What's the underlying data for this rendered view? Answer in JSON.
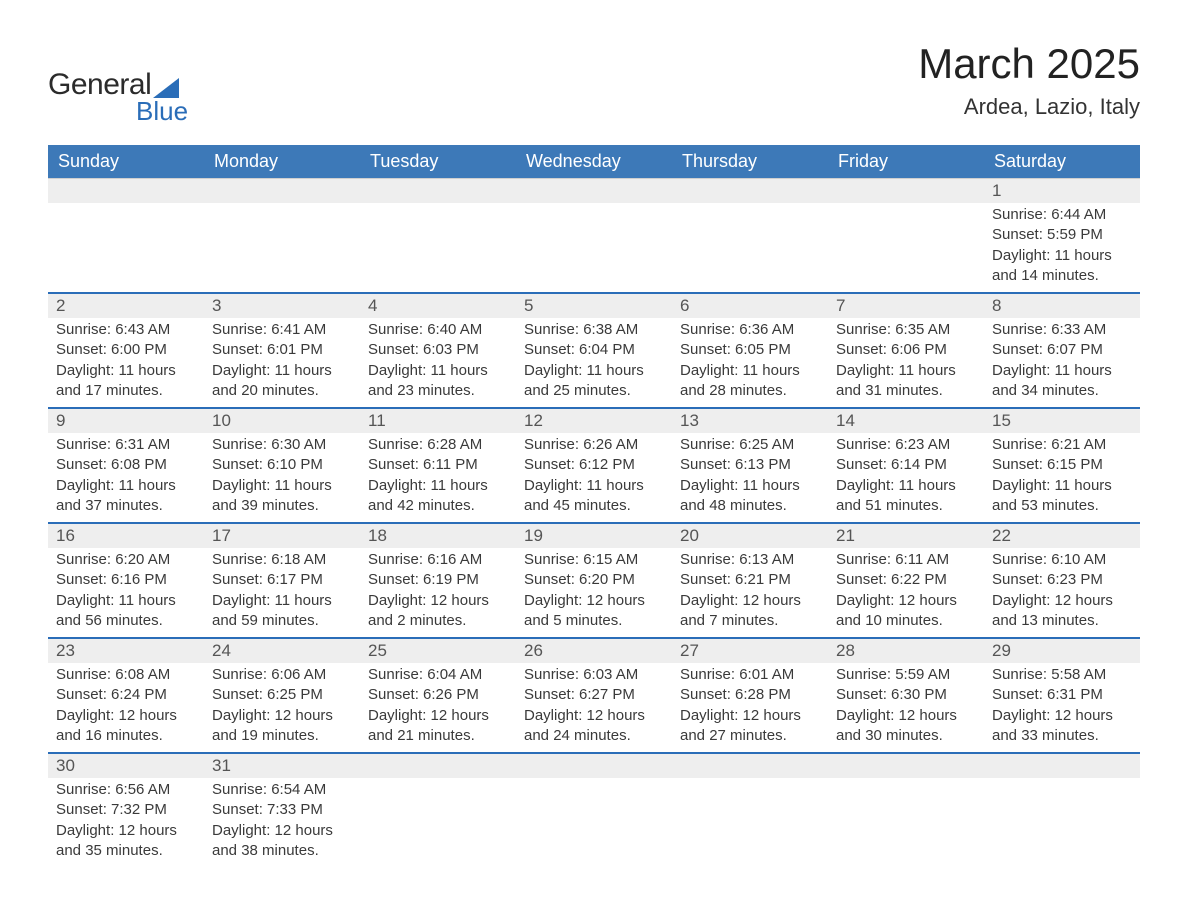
{
  "logo": {
    "text1": "General",
    "text2": "Blue"
  },
  "title": "March 2025",
  "location": "Ardea, Lazio, Italy",
  "header_bg": "#3d79b8",
  "accent": "#2a6db8",
  "daynum_bg": "#eeeeee",
  "columns": [
    "Sunday",
    "Monday",
    "Tuesday",
    "Wednesday",
    "Thursday",
    "Friday",
    "Saturday"
  ],
  "weeks": [
    [
      null,
      null,
      null,
      null,
      null,
      null,
      {
        "d": "1",
        "sr": "6:44 AM",
        "ss": "5:59 PM",
        "dl": "11 hours and 14 minutes."
      }
    ],
    [
      {
        "d": "2",
        "sr": "6:43 AM",
        "ss": "6:00 PM",
        "dl": "11 hours and 17 minutes."
      },
      {
        "d": "3",
        "sr": "6:41 AM",
        "ss": "6:01 PM",
        "dl": "11 hours and 20 minutes."
      },
      {
        "d": "4",
        "sr": "6:40 AM",
        "ss": "6:03 PM",
        "dl": "11 hours and 23 minutes."
      },
      {
        "d": "5",
        "sr": "6:38 AM",
        "ss": "6:04 PM",
        "dl": "11 hours and 25 minutes."
      },
      {
        "d": "6",
        "sr": "6:36 AM",
        "ss": "6:05 PM",
        "dl": "11 hours and 28 minutes."
      },
      {
        "d": "7",
        "sr": "6:35 AM",
        "ss": "6:06 PM",
        "dl": "11 hours and 31 minutes."
      },
      {
        "d": "8",
        "sr": "6:33 AM",
        "ss": "6:07 PM",
        "dl": "11 hours and 34 minutes."
      }
    ],
    [
      {
        "d": "9",
        "sr": "6:31 AM",
        "ss": "6:08 PM",
        "dl": "11 hours and 37 minutes."
      },
      {
        "d": "10",
        "sr": "6:30 AM",
        "ss": "6:10 PM",
        "dl": "11 hours and 39 minutes."
      },
      {
        "d": "11",
        "sr": "6:28 AM",
        "ss": "6:11 PM",
        "dl": "11 hours and 42 minutes."
      },
      {
        "d": "12",
        "sr": "6:26 AM",
        "ss": "6:12 PM",
        "dl": "11 hours and 45 minutes."
      },
      {
        "d": "13",
        "sr": "6:25 AM",
        "ss": "6:13 PM",
        "dl": "11 hours and 48 minutes."
      },
      {
        "d": "14",
        "sr": "6:23 AM",
        "ss": "6:14 PM",
        "dl": "11 hours and 51 minutes."
      },
      {
        "d": "15",
        "sr": "6:21 AM",
        "ss": "6:15 PM",
        "dl": "11 hours and 53 minutes."
      }
    ],
    [
      {
        "d": "16",
        "sr": "6:20 AM",
        "ss": "6:16 PM",
        "dl": "11 hours and 56 minutes."
      },
      {
        "d": "17",
        "sr": "6:18 AM",
        "ss": "6:17 PM",
        "dl": "11 hours and 59 minutes."
      },
      {
        "d": "18",
        "sr": "6:16 AM",
        "ss": "6:19 PM",
        "dl": "12 hours and 2 minutes."
      },
      {
        "d": "19",
        "sr": "6:15 AM",
        "ss": "6:20 PM",
        "dl": "12 hours and 5 minutes."
      },
      {
        "d": "20",
        "sr": "6:13 AM",
        "ss": "6:21 PM",
        "dl": "12 hours and 7 minutes."
      },
      {
        "d": "21",
        "sr": "6:11 AM",
        "ss": "6:22 PM",
        "dl": "12 hours and 10 minutes."
      },
      {
        "d": "22",
        "sr": "6:10 AM",
        "ss": "6:23 PM",
        "dl": "12 hours and 13 minutes."
      }
    ],
    [
      {
        "d": "23",
        "sr": "6:08 AM",
        "ss": "6:24 PM",
        "dl": "12 hours and 16 minutes."
      },
      {
        "d": "24",
        "sr": "6:06 AM",
        "ss": "6:25 PM",
        "dl": "12 hours and 19 minutes."
      },
      {
        "d": "25",
        "sr": "6:04 AM",
        "ss": "6:26 PM",
        "dl": "12 hours and 21 minutes."
      },
      {
        "d": "26",
        "sr": "6:03 AM",
        "ss": "6:27 PM",
        "dl": "12 hours and 24 minutes."
      },
      {
        "d": "27",
        "sr": "6:01 AM",
        "ss": "6:28 PM",
        "dl": "12 hours and 27 minutes."
      },
      {
        "d": "28",
        "sr": "5:59 AM",
        "ss": "6:30 PM",
        "dl": "12 hours and 30 minutes."
      },
      {
        "d": "29",
        "sr": "5:58 AM",
        "ss": "6:31 PM",
        "dl": "12 hours and 33 minutes."
      }
    ],
    [
      {
        "d": "30",
        "sr": "6:56 AM",
        "ss": "7:32 PM",
        "dl": "12 hours and 35 minutes."
      },
      {
        "d": "31",
        "sr": "6:54 AM",
        "ss": "7:33 PM",
        "dl": "12 hours and 38 minutes."
      },
      null,
      null,
      null,
      null,
      null
    ]
  ],
  "labels": {
    "sunrise": "Sunrise: ",
    "sunset": "Sunset: ",
    "daylight": "Daylight: "
  }
}
